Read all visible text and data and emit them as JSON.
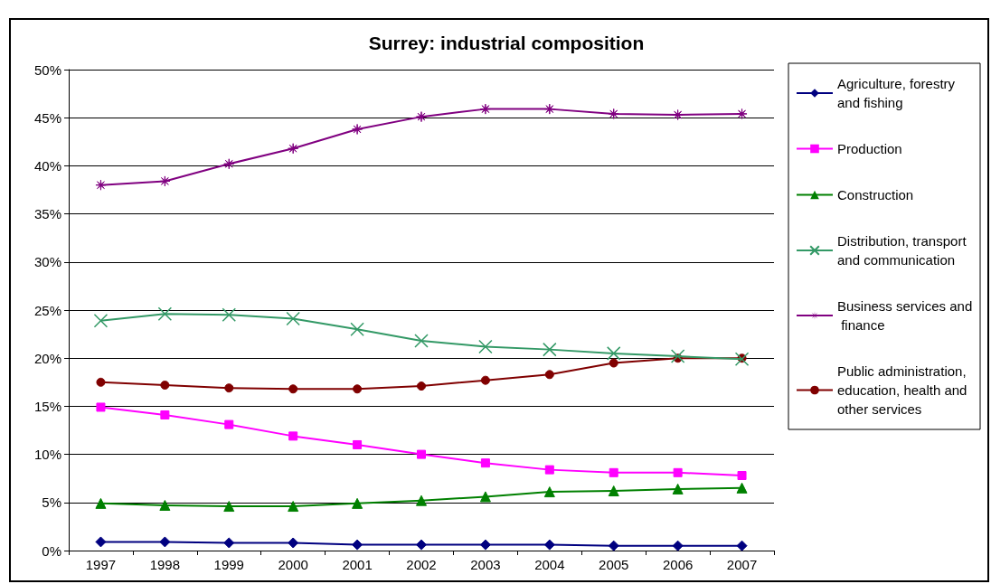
{
  "chart_data": {
    "type": "line",
    "title": "Surrey: industrial composition",
    "categories": [
      "1997",
      "1998",
      "1999",
      "2000",
      "2001",
      "2002",
      "2003",
      "2004",
      "2005",
      "2006",
      "2007"
    ],
    "series": [
      {
        "name": "Agriculture, forestry and fishing",
        "color": "#000080",
        "marker": "diamond",
        "values": [
          0.9,
          0.9,
          0.8,
          0.8,
          0.6,
          0.6,
          0.6,
          0.6,
          0.5,
          0.5,
          0.5
        ]
      },
      {
        "name": "Production",
        "color": "#ff00ff",
        "marker": "square",
        "values": [
          14.9,
          14.1,
          13.1,
          11.9,
          11.0,
          10.0,
          9.1,
          8.4,
          8.1,
          8.1,
          7.8
        ]
      },
      {
        "name": "Construction",
        "color": "#008000",
        "marker": "triangle",
        "values": [
          4.9,
          4.7,
          4.6,
          4.6,
          4.9,
          5.2,
          5.6,
          6.1,
          6.2,
          6.4,
          6.5
        ]
      },
      {
        "name": "Distribution, transport and communication",
        "color": "#339966",
        "marker": "cross",
        "values": [
          23.9,
          24.6,
          24.5,
          24.1,
          23.0,
          21.8,
          21.2,
          20.9,
          20.5,
          20.2,
          19.9
        ]
      },
      {
        "name": "Business services and finance",
        "color": "#800080",
        "marker": "star",
        "values": [
          38.0,
          38.4,
          40.2,
          41.8,
          43.8,
          45.1,
          45.9,
          45.9,
          45.4,
          45.3,
          45.4
        ]
      },
      {
        "name": "Public administration, education, health and other services",
        "color": "#800000",
        "marker": "circle",
        "values": [
          17.5,
          17.2,
          16.9,
          16.8,
          16.8,
          17.1,
          17.7,
          18.3,
          19.5,
          20.0,
          20.0
        ]
      }
    ],
    "ylim": [
      0,
      50
    ],
    "yticks": [
      {
        "value": 0,
        "label": "0%"
      },
      {
        "value": 5,
        "label": "5%"
      },
      {
        "value": 10,
        "label": "10%"
      },
      {
        "value": 15,
        "label": "15%"
      },
      {
        "value": 20,
        "label": "20%"
      },
      {
        "value": 25,
        "label": "25%"
      },
      {
        "value": 30,
        "label": "30%"
      },
      {
        "value": 35,
        "label": "35%"
      },
      {
        "value": 40,
        "label": "40%"
      },
      {
        "value": 45,
        "label": "45%"
      },
      {
        "value": 50,
        "label": "50%"
      }
    ],
    "grid": "y",
    "legend": "right",
    "line_style": "solid"
  }
}
